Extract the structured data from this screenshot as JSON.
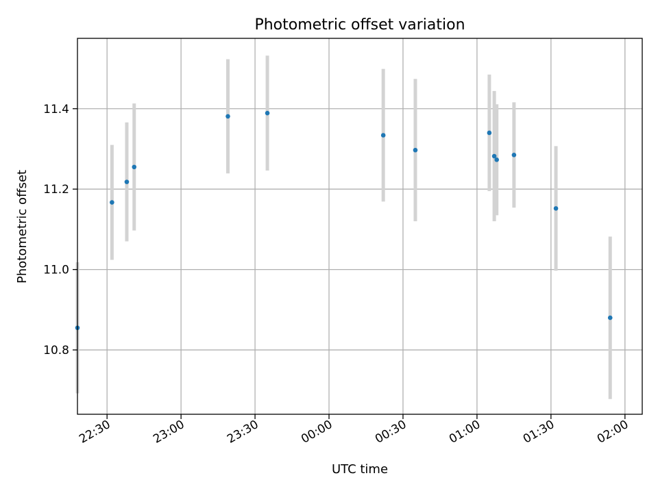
{
  "chart_data": {
    "type": "scatter",
    "title": "Photometric offset variation",
    "xlabel": "UTC time",
    "ylabel": "Photometric offset",
    "grid": true,
    "x_ticks": [
      "22:30",
      "23:00",
      "23:30",
      "00:00",
      "00:30",
      "01:00",
      "01:30",
      "02:00"
    ],
    "y_ticks": [
      "10.8",
      "11.0",
      "11.2",
      "11.4"
    ],
    "xlim": [
      "22:18",
      "02:07"
    ],
    "ylim": [
      10.64,
      11.575
    ],
    "series": [
      {
        "marker_color": "#1f77b4",
        "errorbar_color": "#d3d3d3",
        "points": [
          {
            "x": "22:18",
            "y": 10.855,
            "err": 0.163
          },
          {
            "x": "22:32",
            "y": 11.167,
            "err": 0.143
          },
          {
            "x": "22:38",
            "y": 11.218,
            "err": 0.148
          },
          {
            "x": "22:41",
            "y": 11.255,
            "err": 0.158
          },
          {
            "x": "23:19",
            "y": 11.381,
            "err": 0.142
          },
          {
            "x": "23:35",
            "y": 11.389,
            "err": 0.143
          },
          {
            "x": "00:22",
            "y": 11.334,
            "err": 0.165
          },
          {
            "x": "00:35",
            "y": 11.297,
            "err": 0.177
          },
          {
            "x": "01:05",
            "y": 11.34,
            "err": 0.145
          },
          {
            "x": "01:07",
            "y": 11.282,
            "err": 0.162
          },
          {
            "x": "01:08",
            "y": 11.273,
            "err": 0.138
          },
          {
            "x": "01:15",
            "y": 11.285,
            "err": 0.131
          },
          {
            "x": "01:32",
            "y": 11.152,
            "err": 0.155
          },
          {
            "x": "01:54",
            "y": 10.88,
            "err": 0.202
          }
        ]
      }
    ]
  }
}
